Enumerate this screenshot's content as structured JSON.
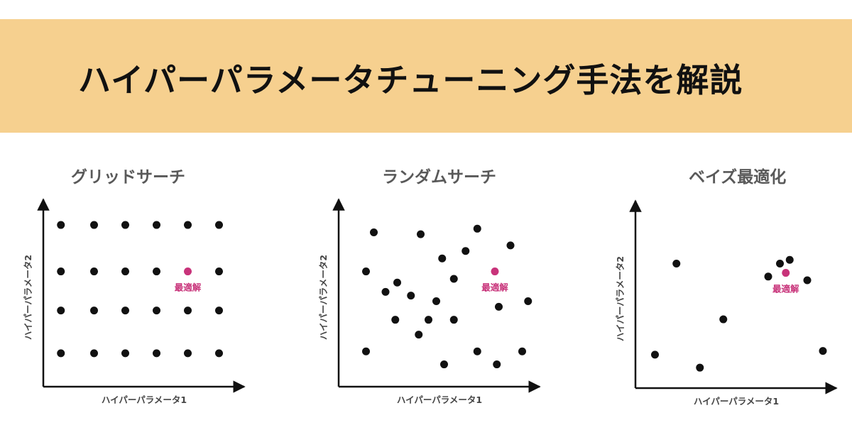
{
  "banner": {
    "title": "ハイパーパラメータチューニング手法を解説"
  },
  "colors": {
    "banner": "#f6d08f",
    "point": "#111111",
    "optimum": "#c8337a",
    "axis": "#111111"
  },
  "panels": [
    {
      "title": "グリッドサーチ",
      "xlabel": "ハイパーパラメータ1",
      "ylabel": "ハイパーパラメータ2",
      "optimum_label": "最適解",
      "optimum": [
        0.74,
        0.62
      ],
      "points": [
        [
          0.09,
          0.87
        ],
        [
          0.26,
          0.87
        ],
        [
          0.42,
          0.87
        ],
        [
          0.58,
          0.87
        ],
        [
          0.74,
          0.87
        ],
        [
          0.9,
          0.87
        ],
        [
          0.09,
          0.62
        ],
        [
          0.26,
          0.62
        ],
        [
          0.42,
          0.62
        ],
        [
          0.58,
          0.62
        ],
        [
          0.9,
          0.62
        ],
        [
          0.09,
          0.41
        ],
        [
          0.26,
          0.41
        ],
        [
          0.42,
          0.41
        ],
        [
          0.58,
          0.41
        ],
        [
          0.74,
          0.41
        ],
        [
          0.9,
          0.41
        ],
        [
          0.09,
          0.18
        ],
        [
          0.26,
          0.18
        ],
        [
          0.42,
          0.18
        ],
        [
          0.58,
          0.18
        ],
        [
          0.74,
          0.18
        ],
        [
          0.9,
          0.18
        ]
      ]
    },
    {
      "title": "ランダムサーチ",
      "xlabel": "ハイパーパラメータ1",
      "ylabel": "ハイパーパラメータ2",
      "optimum_label": "最適解",
      "optimum": [
        0.8,
        0.62
      ],
      "points": [
        [
          0.18,
          0.83
        ],
        [
          0.42,
          0.82
        ],
        [
          0.71,
          0.85
        ],
        [
          0.88,
          0.76
        ],
        [
          0.65,
          0.73
        ],
        [
          0.53,
          0.69
        ],
        [
          0.14,
          0.62
        ],
        [
          0.59,
          0.58
        ],
        [
          0.3,
          0.56
        ],
        [
          0.24,
          0.51
        ],
        [
          0.37,
          0.49
        ],
        [
          0.5,
          0.46
        ],
        [
          0.97,
          0.46
        ],
        [
          0.82,
          0.43
        ],
        [
          0.29,
          0.36
        ],
        [
          0.46,
          0.36
        ],
        [
          0.59,
          0.36
        ],
        [
          0.41,
          0.28
        ],
        [
          0.14,
          0.19
        ],
        [
          0.71,
          0.19
        ],
        [
          0.94,
          0.19
        ],
        [
          0.54,
          0.12
        ],
        [
          0.81,
          0.12
        ]
      ]
    },
    {
      "title": "ベイズ最適化",
      "xlabel": "ハイパーパラメータ1",
      "ylabel": "ハイパーパラメータ2",
      "optimum_label": "最適解",
      "optimum": [
        0.77,
        0.62
      ],
      "points": [
        [
          0.21,
          0.67
        ],
        [
          0.74,
          0.67
        ],
        [
          0.79,
          0.69
        ],
        [
          0.68,
          0.6
        ],
        [
          0.88,
          0.58
        ],
        [
          0.45,
          0.37
        ],
        [
          0.1,
          0.18
        ],
        [
          0.33,
          0.11
        ],
        [
          0.96,
          0.2
        ]
      ]
    }
  ]
}
